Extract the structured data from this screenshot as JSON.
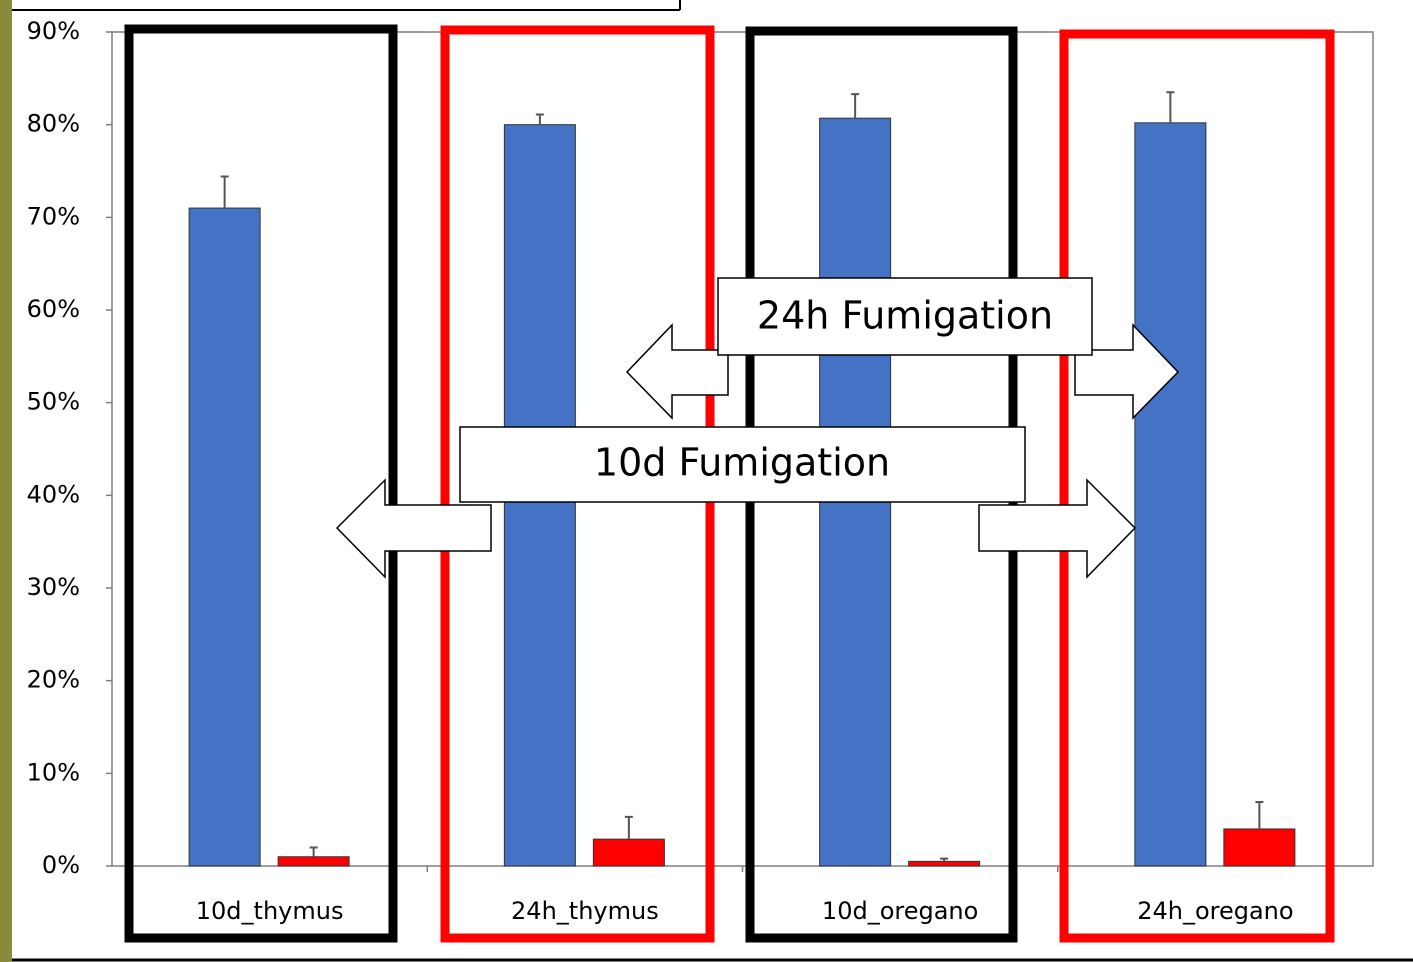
{
  "chart_data": {
    "type": "bar",
    "categories": [
      "10d_thymus",
      "24h_thymus",
      "10d_oregano",
      "24h_oregano"
    ],
    "series": [
      {
        "color": "#4472c4",
        "values": [
          71.0,
          80.0,
          80.7,
          80.2
        ],
        "errors": [
          3.4,
          1.1,
          2.6,
          3.3
        ]
      },
      {
        "color": "#ff0000",
        "values": [
          1.0,
          2.9,
          0.5,
          4.0
        ],
        "errors": [
          1.0,
          2.4,
          0.3,
          2.9
        ]
      }
    ],
    "ylim": [
      0,
      90
    ],
    "yticks": [
      {
        "value": 0,
        "label": "0%"
      },
      {
        "value": 10,
        "label": "10%"
      },
      {
        "value": 20,
        "label": "20%"
      },
      {
        "value": 30,
        "label": "30%"
      },
      {
        "value": 40,
        "label": "40%"
      },
      {
        "value": 50,
        "label": "50%"
      },
      {
        "value": 60,
        "label": "60%"
      },
      {
        "value": 70,
        "label": "70%"
      },
      {
        "value": 80,
        "label": "80%"
      },
      {
        "value": 90,
        "label": "90%"
      }
    ],
    "annotations": [
      "24h Fumigation",
      "10d Fumigation"
    ]
  }
}
